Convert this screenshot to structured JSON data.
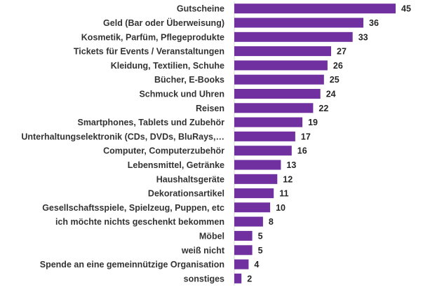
{
  "chart_data": {
    "type": "bar",
    "orientation": "horizontal",
    "title": "",
    "xlabel": "",
    "ylabel": "",
    "xlim": [
      0,
      45
    ],
    "grid": false,
    "legend": "none",
    "bar_color": "#7030A0",
    "categories": [
      "Gutscheine",
      "Geld (Bar oder Überweisung)",
      "Kosmetik, Parfüm, Pflegeprodukte",
      "Tickets für Events / Veranstaltungen",
      "Kleidung, Textilien, Schuhe",
      "Bücher, E-Books",
      "Schmuck und Uhren",
      "Reisen",
      "Smartphones, Tablets und Zubehör",
      "Unterhaltungselektronik (CDs, DVDs, BluRays,…",
      "Computer, Computerzubehör",
      "Lebensmittel, Getränke",
      "Haushaltsgeräte",
      "Dekorationsartikel",
      "Gesellschaftsspiele, Spielzeug, Puppen, etc",
      "ich möchte nichts geschenkt bekommen",
      "Möbel",
      "weiß nicht",
      "Spende an eine gemeinnützige Organisation",
      "sonstiges"
    ],
    "values": [
      45,
      36,
      33,
      27,
      26,
      25,
      24,
      22,
      19,
      17,
      16,
      13,
      12,
      11,
      10,
      8,
      5,
      5,
      4,
      2
    ]
  }
}
